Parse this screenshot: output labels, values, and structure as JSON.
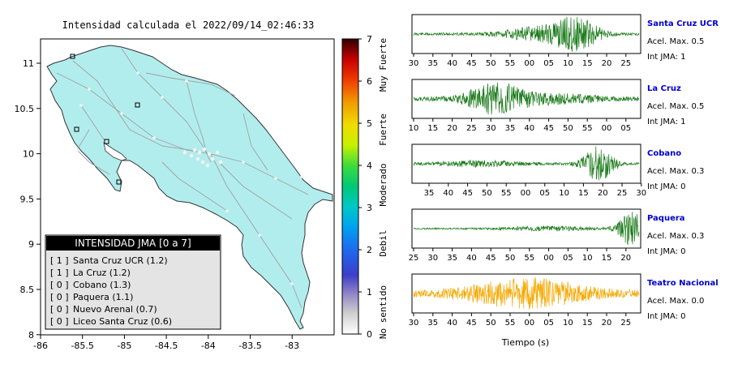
{
  "map": {
    "title": "Intensidad calculada el 2022/09/14_02:46:33",
    "x_ticks": [
      "-86",
      "-85.5",
      "-85",
      "-84.5",
      "-84",
      "-83.5",
      "-83"
    ],
    "y_ticks": [
      "11",
      "10.5",
      "10",
      "9.5",
      "9",
      "8.5",
      "8"
    ],
    "colorbar_ticks": [
      "0",
      "1",
      "2",
      "3",
      "4",
      "5",
      "6",
      "7"
    ],
    "colorbar_labels": [
      "No sentido",
      "Debil",
      "Moderado",
      "Fuerte",
      "Muy Fuerte"
    ],
    "land_color": "#b2eded",
    "legend": {
      "title": "INTENSIDAD JMA [0 a 7]",
      "items": [
        {
          "value": "[ 1 ]",
          "name": "Santa Cruz UCR (1.2)"
        },
        {
          "value": "[ 1 ]",
          "name": "La Cruz (1.2)"
        },
        {
          "value": "[ 0 ]",
          "name": "Cobano (1.3)"
        },
        {
          "value": "[ 0 ]",
          "name": "Paquera (1.1)"
        },
        {
          "value": "[ 0 ]",
          "name": "Nuevo Arenal (0.7)"
        },
        {
          "value": "[ 0 ]",
          "name": "Liceo Santa Cruz (0.6)"
        }
      ]
    }
  },
  "traces": [
    {
      "station": "Santa Cruz UCR",
      "acel": "Acel. Max. 0.5",
      "jma": "Int JMA: 1",
      "color": "#1a7a1a",
      "ticks": [
        "30",
        "35",
        "40",
        "45",
        "50",
        "55",
        "00",
        "05",
        "10",
        "15",
        "20",
        "25"
      ]
    },
    {
      "station": "La Cruz",
      "acel": "Acel. Max. 0.5",
      "jma": "Int JMA: 1",
      "color": "#1a7a1a",
      "ticks": [
        "10",
        "15",
        "20",
        "25",
        "30",
        "35",
        "40",
        "45",
        "50",
        "55",
        "00",
        "05"
      ]
    },
    {
      "station": "Cobano",
      "acel": "Acel. Max. 0.3",
      "jma": "Int JMA: 0",
      "color": "#1a7a1a",
      "ticks": [
        "35",
        "40",
        "45",
        "50",
        "55",
        "00",
        "05",
        "10",
        "15",
        "20",
        "25",
        "30"
      ]
    },
    {
      "station": "Paquera",
      "acel": "Acel. Max. 0.3",
      "jma": "Int JMA: 0",
      "color": "#1a7a1a",
      "ticks": [
        "25",
        "30",
        "35",
        "40",
        "45",
        "50",
        "55",
        "00",
        "05",
        "10",
        "15",
        "20"
      ]
    },
    {
      "station": "Teatro Nacional",
      "acel": "Acel. Max. 0.0",
      "jma": "Int JMA: 0",
      "color": "#f5a800",
      "ticks": [
        "30",
        "35",
        "40",
        "45",
        "50",
        "55",
        "00",
        "05",
        "10",
        "15",
        "20",
        "25"
      ]
    }
  ],
  "xlabel": "Tiempo (s)",
  "station_label_color": "#0000cc"
}
